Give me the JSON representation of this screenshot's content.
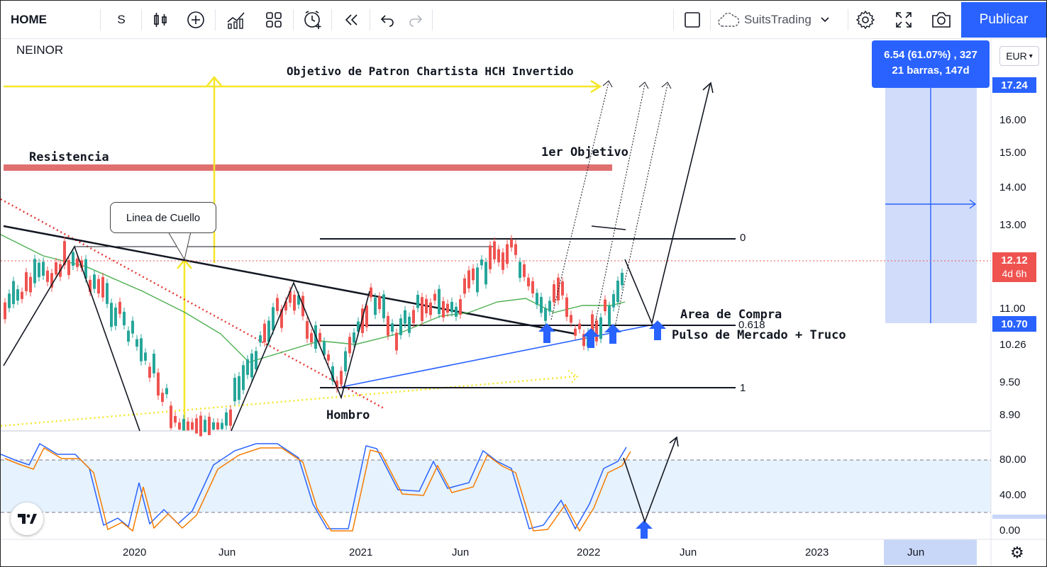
{
  "toolbar": {
    "symbol": "HOME",
    "interval": "S",
    "username": "SuitsTrading",
    "publish_label": "Publicar",
    "icons": [
      "candles-icon",
      "add-indicator-icon",
      "indicators-icon",
      "layout-grid-icon",
      "alert-icon",
      "replay-icon",
      "undo-icon",
      "redo-icon",
      "fullscreen-box-icon",
      "cloud-icon",
      "settings-icon",
      "expand-icon",
      "camera-icon"
    ]
  },
  "chart": {
    "ticker": "NEINOR",
    "currency": "EUR",
    "measure": {
      "line1": "6.54 (61.07%) , 327",
      "line2": "21 barras, 147d"
    },
    "price_tags": {
      "top": "17.24",
      "current": "12.12",
      "countdown": "4d 6h",
      "low": "10.70"
    },
    "y_axis": [
      "16.00",
      "15.00",
      "14.00",
      "13.00",
      "11.00",
      "10.26",
      "9.50",
      "8.90"
    ],
    "osc_axis": [
      "80.00",
      "40.00",
      "0.00"
    ],
    "x_axis": [
      "2020",
      "Jun",
      "2021",
      "Jun",
      "2022",
      "Jun",
      "2023",
      "Jun"
    ],
    "annotations": {
      "objective": "Objetivo de Patron Chartista HCH Invertido",
      "resistance": "Resistencia",
      "first_target": "1er Objetivo",
      "neckline": "Linea de Cuello",
      "buy_area": "Area de Compra",
      "pulse": "Pulso de Mercado + Truco",
      "shoulder": "Hombro"
    },
    "fib": {
      "top": "0",
      "mid": "0.618",
      "bottom": "1"
    },
    "colors": {
      "accent": "#2962ff",
      "resistance": "#e07070",
      "target": "#f5e629",
      "ma": "#4caf50",
      "down": "#ef5350",
      "up": "#26a69a"
    }
  }
}
